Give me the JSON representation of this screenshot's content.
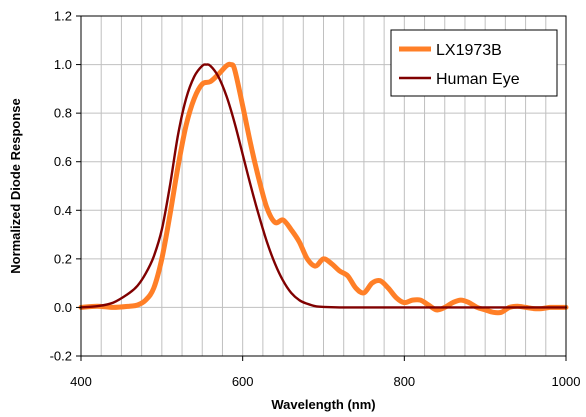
{
  "chart_data": {
    "type": "line",
    "title": "",
    "xlabel": "Wavelength (nm)",
    "ylabel": "Normalized Diode Response",
    "xlim": [
      400,
      1000
    ],
    "ylim": [
      -0.2,
      1.2
    ],
    "xticks": [
      400,
      600,
      800,
      1000
    ],
    "yticks": [
      -0.2,
      0.0,
      0.2,
      0.4,
      0.6,
      0.8,
      1.0,
      1.2
    ],
    "ytick_labels": [
      "-0.2",
      "0.0",
      "0.2",
      "0.4",
      "0.6",
      "0.8",
      "1.0",
      "1.2"
    ],
    "grid": true,
    "legend_position": "top-right",
    "series": [
      {
        "name": "LX1973B",
        "color": "#ff7f27",
        "x": [
          400,
          420,
          440,
          460,
          470,
          480,
          490,
          500,
          510,
          520,
          530,
          540,
          550,
          560,
          570,
          580,
          585,
          590,
          600,
          610,
          620,
          630,
          640,
          650,
          660,
          670,
          680,
          690,
          700,
          710,
          720,
          730,
          740,
          750,
          760,
          770,
          780,
          790,
          800,
          810,
          820,
          830,
          840,
          850,
          860,
          870,
          880,
          890,
          900,
          910,
          920,
          930,
          940,
          950,
          960,
          970,
          980,
          990,
          1000
        ],
        "y": [
          0.0,
          0.005,
          0.0,
          0.005,
          0.01,
          0.03,
          0.08,
          0.2,
          0.38,
          0.58,
          0.75,
          0.86,
          0.92,
          0.93,
          0.96,
          0.995,
          1.0,
          0.98,
          0.83,
          0.67,
          0.53,
          0.41,
          0.35,
          0.36,
          0.32,
          0.27,
          0.2,
          0.17,
          0.2,
          0.18,
          0.15,
          0.13,
          0.08,
          0.06,
          0.1,
          0.11,
          0.08,
          0.04,
          0.02,
          0.03,
          0.03,
          0.01,
          -0.01,
          0.0,
          0.02,
          0.03,
          0.02,
          0.0,
          -0.01,
          -0.02,
          -0.02,
          0.0,
          0.005,
          0.0,
          -0.005,
          -0.005,
          0.0,
          0.0,
          0.0
        ]
      },
      {
        "name": "Human Eye",
        "color": "#800000",
        "x": [
          400,
          420,
          440,
          460,
          470,
          480,
          490,
          500,
          510,
          520,
          530,
          540,
          550,
          555,
          560,
          570,
          580,
          590,
          600,
          610,
          620,
          630,
          640,
          650,
          660,
          670,
          680,
          690,
          700,
          720,
          750,
          800,
          850,
          900,
          950,
          1000
        ],
        "y": [
          0.0,
          0.005,
          0.02,
          0.06,
          0.09,
          0.14,
          0.21,
          0.32,
          0.5,
          0.71,
          0.86,
          0.95,
          0.995,
          1.0,
          0.995,
          0.95,
          0.87,
          0.76,
          0.63,
          0.5,
          0.38,
          0.27,
          0.18,
          0.11,
          0.06,
          0.03,
          0.015,
          0.005,
          0.002,
          0.0,
          0.0,
          0.0,
          0.0,
          0.0,
          0.0,
          0.0
        ]
      }
    ]
  }
}
